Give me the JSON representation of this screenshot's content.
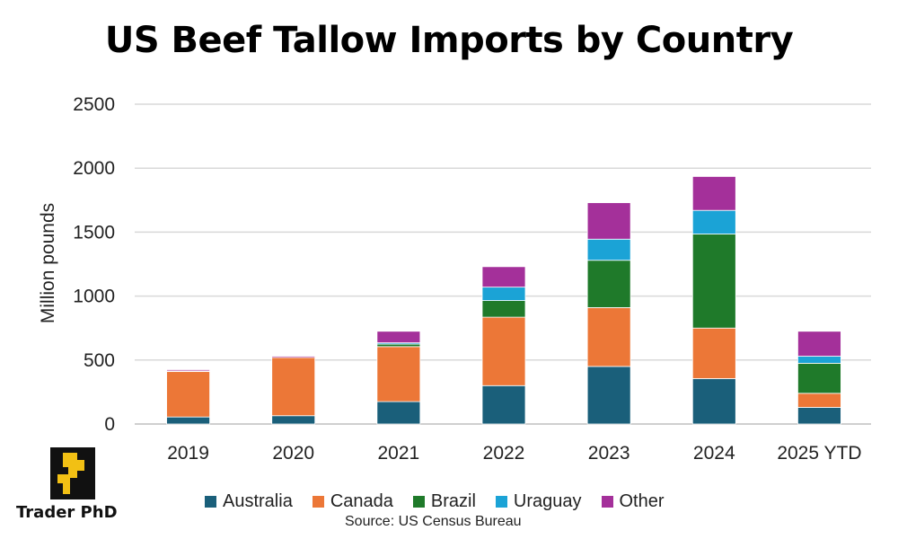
{
  "chart_data": {
    "type": "bar",
    "stacked": true,
    "title": "US Beef Tallow Imports by Country",
    "xlabel": "",
    "ylabel": "Million pounds",
    "ylim": [
      0,
      2500
    ],
    "yticks": [
      0,
      500,
      1000,
      1500,
      2000,
      2500
    ],
    "grid": true,
    "legend_position": "bottom",
    "categories": [
      "2019",
      "2020",
      "2021",
      "2022",
      "2023",
      "2024",
      "2025 YTD"
    ],
    "series": [
      {
        "name": "Australia",
        "color": "#1a5f7a",
        "values": [
          55,
          65,
          175,
          300,
          450,
          355,
          130
        ]
      },
      {
        "name": "Canada",
        "color": "#ec7737",
        "values": [
          355,
          455,
          430,
          535,
          460,
          395,
          110
        ]
      },
      {
        "name": "Brazil",
        "color": "#1f7a2a",
        "values": [
          5,
          0,
          20,
          130,
          370,
          735,
          235
        ]
      },
      {
        "name": "Uraguay",
        "color": "#1ba3d6",
        "values": [
          0,
          0,
          10,
          105,
          165,
          185,
          55
        ]
      },
      {
        "name": "Other",
        "color": "#a4309a",
        "values": [
          10,
          10,
          90,
          160,
          285,
          265,
          195
        ]
      }
    ],
    "source": "Source: US Census Bureau"
  },
  "logo": {
    "text": "Trader PhD",
    "color": "#f2c014"
  }
}
